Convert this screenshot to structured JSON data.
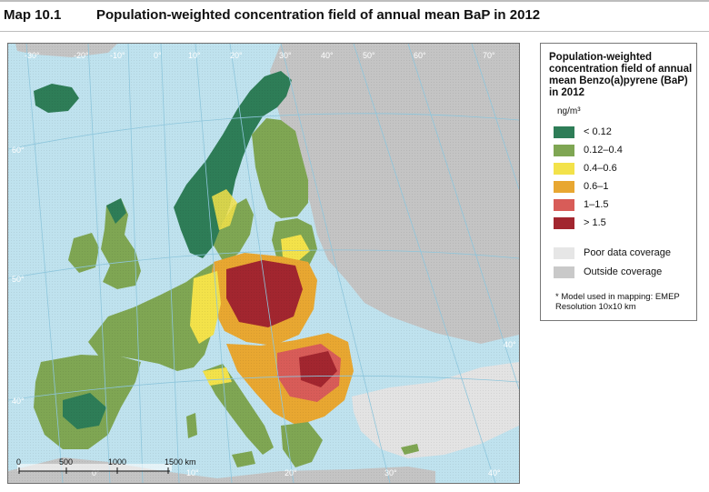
{
  "header": {
    "map_number": "Map 10.1",
    "title": "Population-weighted concentration field of annual mean BaP in 2012"
  },
  "legend": {
    "title": "Population-weighted concentration field of annual mean Benzo(a)pyrene (BaP) in 2012",
    "unit": "ng/m³",
    "classes": [
      {
        "label": "< 0.12",
        "color": "#2e7d57"
      },
      {
        "label": "0.12–0.4",
        "color": "#7fa653"
      },
      {
        "label": "0.4–0.6",
        "color": "#f3e24a"
      },
      {
        "label": "0.6–1",
        "color": "#e8a731"
      },
      {
        "label": "1–1.5",
        "color": "#d85c58"
      },
      {
        "label": "> 1.5",
        "color": "#a2262f"
      }
    ],
    "coverage": [
      {
        "label": "Poor data coverage",
        "color": "#e6e6e6"
      },
      {
        "label": "Outside coverage",
        "color": "#c9c9c9"
      }
    ],
    "note": "* Model used in mapping: EMEP Resolution 10x10 km"
  },
  "map": {
    "colors": {
      "sea": "#bfe2ee",
      "outside": "#c4c4c4",
      "poor": "#e3e3e3",
      "graticule": "#8ec6dc"
    },
    "longitude_labels": [
      "-30°",
      "-20°",
      "-10°",
      "0°",
      "10°",
      "20°",
      "30°",
      "40°",
      "50°",
      "60°",
      "70°"
    ],
    "latitude_labels_left": [
      "60°",
      "50°",
      "40°"
    ],
    "latitude_labels_right": [
      "40°"
    ],
    "bottom_longitude_labels": [
      "0°",
      "10°",
      "20°",
      "30°",
      "40°"
    ],
    "scale_labels": [
      "0",
      "500",
      "1000",
      "1500 km"
    ]
  }
}
